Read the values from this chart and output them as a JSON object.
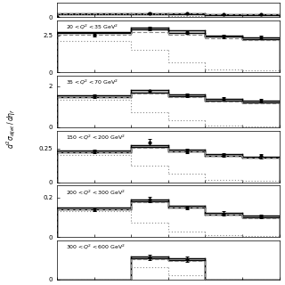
{
  "panels": [
    {
      "label": "",
      "ymax": 0.5,
      "ytick_vals": [
        0
      ],
      "ytick_labels": [
        "0"
      ],
      "show_label": false,
      "has_data": true,
      "bin_edges": [
        -0.5,
        0.5,
        1.0,
        1.5,
        2.0,
        2.5
      ],
      "solid_vals": [
        0.15,
        0.15,
        0.15,
        0.1,
        0.1
      ],
      "solid2_vals": [
        0.12,
        0.12,
        0.12,
        0.08,
        0.08
      ],
      "dashed_vals": [
        0.13,
        0.13,
        0.13,
        0.09,
        0.09
      ],
      "dotted_vals": [
        0.1,
        0.1,
        0.05,
        0.02,
        0.02
      ],
      "data_x": [
        -0.5,
        0.75,
        1.25,
        1.75,
        2.25
      ],
      "data_y": [
        0.0,
        0.15,
        0.13,
        0.1,
        0.1
      ],
      "data_yerr": [
        0.01,
        0.01,
        0.01,
        0.01,
        0.01
      ]
    },
    {
      "label": "$20 < Q^2 < 35$ GeV$^2$",
      "ymax": 3.5,
      "ytick_vals": [
        0,
        2.5
      ],
      "ytick_labels": [
        "0",
        "2.5"
      ],
      "show_label": true,
      "has_data": true,
      "bin_edges": [
        -0.5,
        0.5,
        1.0,
        1.5,
        2.0,
        2.5
      ],
      "solid_vals": [
        2.75,
        3.05,
        2.85,
        2.5,
        2.35
      ],
      "solid2_vals": [
        2.65,
        2.9,
        2.7,
        2.4,
        2.25
      ],
      "dashed_vals": [
        2.55,
        2.72,
        2.55,
        2.28,
        2.18
      ],
      "dotted_vals": [
        2.15,
        1.5,
        0.65,
        0.2,
        0.1
      ],
      "data_x": [
        0.0,
        0.75,
        1.25,
        1.75,
        2.25
      ],
      "data_y": [
        2.55,
        2.95,
        2.72,
        2.45,
        2.35
      ],
      "data_yerr": [
        0.12,
        0.12,
        0.12,
        0.12,
        0.12
      ]
    },
    {
      "label": "$35 < Q^2 < 70$ GeV$^2$",
      "ymax": 2.5,
      "ytick_vals": [
        0,
        2
      ],
      "ytick_labels": [
        "0",
        "2"
      ],
      "show_label": true,
      "has_data": true,
      "bin_edges": [
        -0.5,
        0.5,
        1.0,
        1.5,
        2.0,
        2.5
      ],
      "solid_vals": [
        1.55,
        1.8,
        1.6,
        1.38,
        1.28
      ],
      "solid2_vals": [
        1.48,
        1.7,
        1.52,
        1.3,
        1.2
      ],
      "dashed_vals": [
        1.48,
        1.65,
        1.46,
        1.26,
        1.18
      ],
      "dotted_vals": [
        1.35,
        0.75,
        0.32,
        0.1,
        0.05
      ],
      "data_x": [
        0.0,
        0.75,
        1.25,
        1.75,
        2.25
      ],
      "data_y": [
        1.5,
        1.75,
        1.55,
        1.38,
        1.28
      ],
      "data_yerr": [
        0.08,
        0.08,
        0.08,
        0.08,
        0.08
      ]
    },
    {
      "label": "$150 < Q^2 < 200$ GeV$^2$",
      "ymax": 0.38,
      "ytick_vals": [
        0,
        0.25
      ],
      "ytick_labels": [
        "0",
        "0.25"
      ],
      "show_label": true,
      "has_data": true,
      "bin_edges": [
        -0.5,
        0.5,
        1.0,
        1.5,
        2.0,
        2.5
      ],
      "solid_vals": [
        0.232,
        0.272,
        0.24,
        0.208,
        0.19
      ],
      "solid2_vals": [
        0.22,
        0.258,
        0.226,
        0.196,
        0.178
      ],
      "dashed_vals": [
        0.22,
        0.255,
        0.225,
        0.195,
        0.178
      ],
      "dotted_vals": [
        0.2,
        0.125,
        0.06,
        0.018,
        0.01
      ],
      "data_x": [
        0.0,
        0.75,
        1.25,
        1.75,
        2.25
      ],
      "data_y": [
        0.228,
        0.295,
        0.23,
        0.2,
        0.192
      ],
      "data_yerr": [
        0.015,
        0.025,
        0.015,
        0.015,
        0.015
      ]
    },
    {
      "label": "$200 < Q^2 < 300$ GeV$^2$",
      "ymax": 0.26,
      "ytick_vals": [
        0,
        0.2
      ],
      "ytick_labels": [
        "0",
        "0.2"
      ],
      "show_label": true,
      "has_data": true,
      "bin_edges": [
        -0.5,
        0.5,
        1.0,
        1.5,
        2.0,
        2.5
      ],
      "solid_vals": [
        0.148,
        0.19,
        0.16,
        0.125,
        0.11
      ],
      "solid2_vals": [
        0.14,
        0.18,
        0.15,
        0.116,
        0.1
      ],
      "dashed_vals": [
        0.14,
        0.178,
        0.148,
        0.113,
        0.098
      ],
      "dotted_vals": [
        0.132,
        0.072,
        0.03,
        0.01,
        0.006
      ],
      "data_x": [
        0.0,
        0.75,
        1.25,
        1.75,
        2.25
      ],
      "data_y": [
        0.142,
        0.19,
        0.15,
        0.12,
        0.105
      ],
      "data_yerr": [
        0.01,
        0.012,
        0.01,
        0.01,
        0.01
      ]
    },
    {
      "label": "$300 < Q^2 < 600$ GeV$^2$",
      "ymax": 0.12,
      "ytick_vals": [
        0
      ],
      "ytick_labels": [
        "0"
      ],
      "show_label": true,
      "has_data": true,
      "bin_edges": [
        -0.5,
        0.5,
        1.0,
        1.5,
        2.0,
        2.5
      ],
      "solid_vals": [
        0.0,
        0.07,
        0.065,
        0.0,
        0.0
      ],
      "solid2_vals": [
        0.0,
        0.065,
        0.06,
        0.0,
        0.0
      ],
      "dashed_vals": [
        0.0,
        0.062,
        0.057,
        0.0,
        0.0
      ],
      "dotted_vals": [
        0.0,
        0.038,
        0.012,
        0.0,
        0.0
      ],
      "data_x": [
        0.75,
        1.25
      ],
      "data_y": [
        0.068,
        0.062
      ],
      "data_yerr": [
        0.008,
        0.008
      ]
    }
  ],
  "height_ratios": [
    0.28,
    1.0,
    1.0,
    1.0,
    1.0,
    0.75
  ],
  "xlim": [
    -0.5,
    2.5
  ],
  "ylabel": "$d^{2}\\sigma_{dijet}\\,/\\,d\\eta_{f}$",
  "bg": "#ffffff",
  "color_solid": "#000000",
  "color_dashed": "#888888",
  "color_dotted": "#888888"
}
